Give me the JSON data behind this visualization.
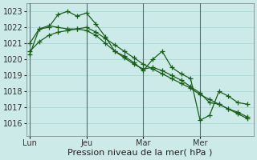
{
  "background_color": "#cceae8",
  "grid_color": "#aad4d0",
  "line_color": "#1a5c1a",
  "marker": "+",
  "marker_size": 4,
  "line_width": 0.9,
  "xlabel": "Pression niveau de la mer( hPa )",
  "xlabel_fontsize": 8,
  "tick_fontsize": 7,
  "ylim": [
    1015.2,
    1023.5
  ],
  "yticks": [
    1016,
    1017,
    1018,
    1019,
    1020,
    1021,
    1022,
    1023
  ],
  "day_labels": [
    "Lun",
    "Jeu",
    "Mar",
    "Mer"
  ],
  "day_positions": [
    0,
    18,
    36,
    54
  ],
  "vline_positions": [
    0,
    18,
    36,
    54
  ],
  "xlim": [
    -1,
    71
  ],
  "series1_x": [
    0,
    3,
    6,
    9,
    12,
    15,
    18,
    21,
    24,
    27,
    30,
    33,
    36,
    39,
    42,
    45,
    48,
    51,
    54,
    57,
    60,
    63,
    66,
    69
  ],
  "series1_y": [
    1020.5,
    1021.1,
    1021.5,
    1021.7,
    1021.8,
    1021.9,
    1022.0,
    1021.7,
    1021.3,
    1020.9,
    1020.5,
    1020.1,
    1019.7,
    1019.4,
    1019.1,
    1018.8,
    1018.5,
    1018.2,
    1017.8,
    1017.5,
    1017.2,
    1016.9,
    1016.6,
    1016.3
  ],
  "series2_x": [
    0,
    3,
    6,
    9,
    12,
    15,
    18,
    21,
    24,
    27,
    30,
    33,
    36,
    39,
    42,
    45,
    48,
    51,
    54,
    57,
    60,
    63,
    66,
    69
  ],
  "series2_y": [
    1021.0,
    1021.9,
    1022.1,
    1022.0,
    1021.9,
    1021.9,
    1021.8,
    1021.5,
    1021.0,
    1020.5,
    1020.1,
    1019.7,
    1019.4,
    1019.5,
    1019.3,
    1019.0,
    1018.7,
    1018.3,
    1017.9,
    1017.3,
    1017.2,
    1016.9,
    1016.7,
    1016.4
  ],
  "series3_x": [
    0,
    3,
    6,
    9,
    12,
    15,
    18,
    21,
    24,
    27,
    30,
    33,
    36,
    39,
    42,
    45,
    48,
    51,
    54,
    57,
    60,
    63,
    66,
    69
  ],
  "series3_y": [
    1020.3,
    1021.9,
    1022.0,
    1022.8,
    1023.0,
    1022.7,
    1022.9,
    1022.2,
    1021.4,
    1020.5,
    1020.2,
    1019.8,
    1019.3,
    1020.0,
    1020.5,
    1019.5,
    1019.1,
    1018.8,
    1016.2,
    1016.5,
    1018.0,
    1017.7,
    1017.3,
    1017.2
  ]
}
